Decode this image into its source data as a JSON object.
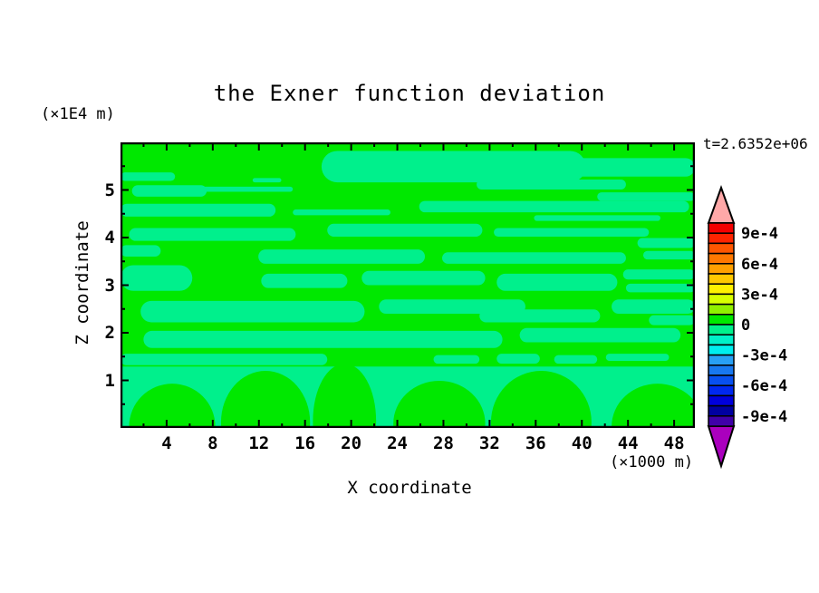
{
  "page": {
    "background_color": "#ffffff"
  },
  "chart_data": {
    "type": "contour",
    "title": "the Exner function deviation",
    "time_label": "t=2.6352e+06",
    "xlabel": "X coordinate",
    "ylabel": "Z coordinate",
    "x_unit_label": "(×1000 m)",
    "y_unit_label": "(×1E4 m)",
    "xlim": [
      0,
      49.8
    ],
    "ylim": [
      0,
      6
    ],
    "x_ticks_major": [
      4,
      8,
      12,
      16,
      20,
      24,
      28,
      32,
      36,
      40,
      44,
      48
    ],
    "x_ticks_minor": [
      2,
      6,
      10,
      14,
      18,
      22,
      26,
      30,
      34,
      38,
      42,
      46
    ],
    "y_ticks_major": [
      1,
      2,
      3,
      4,
      5
    ],
    "y_ticks_minor": [
      0.5,
      1.5,
      2.5,
      3.5,
      4.5,
      5.5
    ],
    "grid": false,
    "contour_levels": {
      "min": -0.001,
      "max": 0.001,
      "interval": 0.0001
    },
    "colorbar": {
      "position": "right",
      "labels": [
        {
          "text": "9e-4",
          "boundary": 1
        },
        {
          "text": "6e-4",
          "boundary": 4
        },
        {
          "text": "3e-4",
          "boundary": 7
        },
        {
          "text": "0",
          "boundary": 10
        },
        {
          "text": "-3e-4",
          "boundary": 13
        },
        {
          "text": "-6e-4",
          "boundary": 16
        },
        {
          "text": "-9e-4",
          "boundary": 19
        }
      ],
      "segment_colors_top_to_bottom": [
        "#f40000",
        "#ff2400",
        "#ff5600",
        "#ff7800",
        "#ffa000",
        "#ffc800",
        "#fff000",
        "#d8ff00",
        "#90f000",
        "#00e800",
        "#00f08c",
        "#00f0c8",
        "#00eeee",
        "#28a0f5",
        "#1878f0",
        "#0850f0",
        "#0028f0",
        "#0000dc",
        "#0000a0",
        "#4000a8"
      ],
      "over_arrow_color": "#ffa8a8",
      "under_arrow_color": "#aa00be"
    },
    "field": {
      "background_color": "#00e800",
      "background_value_range": "0 to 1e-4",
      "band_color": "#00f08c",
      "band_value_range": "-1e-4 to 0",
      "neg_bands": [
        [
          0.35,
          0.03,
          0.46,
          0.11
        ],
        [
          0.55,
          0.055,
          0.45,
          0.065
        ],
        [
          0.62,
          0.13,
          0.26,
          0.035
        ],
        [
          0.83,
          0.175,
          0.17,
          0.03
        ],
        [
          0.0,
          0.105,
          0.095,
          0.03
        ],
        [
          0.02,
          0.15,
          0.13,
          0.04
        ],
        [
          0.13,
          0.155,
          0.17,
          0.018
        ],
        [
          0.23,
          0.125,
          0.05,
          0.015
        ],
        [
          0.0,
          0.215,
          0.27,
          0.045
        ],
        [
          0.52,
          0.205,
          0.47,
          0.04
        ],
        [
          0.3,
          0.235,
          0.17,
          0.02
        ],
        [
          0.72,
          0.255,
          0.22,
          0.02
        ],
        [
          0.015,
          0.3,
          0.29,
          0.045
        ],
        [
          0.36,
          0.285,
          0.27,
          0.045
        ],
        [
          0.65,
          0.3,
          0.27,
          0.03
        ],
        [
          0.9,
          0.335,
          0.1,
          0.035
        ],
        [
          0.0,
          0.36,
          0.07,
          0.04
        ],
        [
          0.24,
          0.375,
          0.29,
          0.05
        ],
        [
          0.56,
          0.385,
          0.32,
          0.04
        ],
        [
          0.91,
          0.38,
          0.09,
          0.03
        ],
        [
          0.0,
          0.43,
          0.125,
          0.09
        ],
        [
          0.245,
          0.46,
          0.15,
          0.05
        ],
        [
          0.42,
          0.45,
          0.215,
          0.05
        ],
        [
          0.655,
          0.46,
          0.21,
          0.06
        ],
        [
          0.875,
          0.445,
          0.125,
          0.035
        ],
        [
          0.88,
          0.495,
          0.12,
          0.03
        ],
        [
          0.035,
          0.555,
          0.39,
          0.075
        ],
        [
          0.45,
          0.55,
          0.255,
          0.05
        ],
        [
          0.625,
          0.585,
          0.21,
          0.045
        ],
        [
          0.855,
          0.55,
          0.145,
          0.05
        ],
        [
          0.92,
          0.605,
          0.08,
          0.035
        ],
        [
          0.04,
          0.66,
          0.625,
          0.06
        ],
        [
          0.695,
          0.65,
          0.28,
          0.05
        ],
        [
          0.0,
          0.74,
          0.36,
          0.04
        ],
        [
          0.545,
          0.745,
          0.08,
          0.03
        ],
        [
          0.655,
          0.74,
          0.075,
          0.035
        ],
        [
          0.755,
          0.745,
          0.075,
          0.03
        ],
        [
          0.845,
          0.74,
          0.11,
          0.025
        ]
      ],
      "bottom_band": [
        0.0,
        0.785,
        1.0,
        0.215
      ],
      "pos_blobs": [
        [
          0.015,
          0.845,
          0.15,
          0.3
        ],
        [
          0.175,
          0.8,
          0.155,
          0.36
        ],
        [
          0.335,
          0.775,
          0.11,
          0.4
        ],
        [
          0.475,
          0.835,
          0.16,
          0.3
        ],
        [
          0.645,
          0.8,
          0.175,
          0.36
        ],
        [
          0.855,
          0.845,
          0.16,
          0.3
        ]
      ]
    }
  }
}
